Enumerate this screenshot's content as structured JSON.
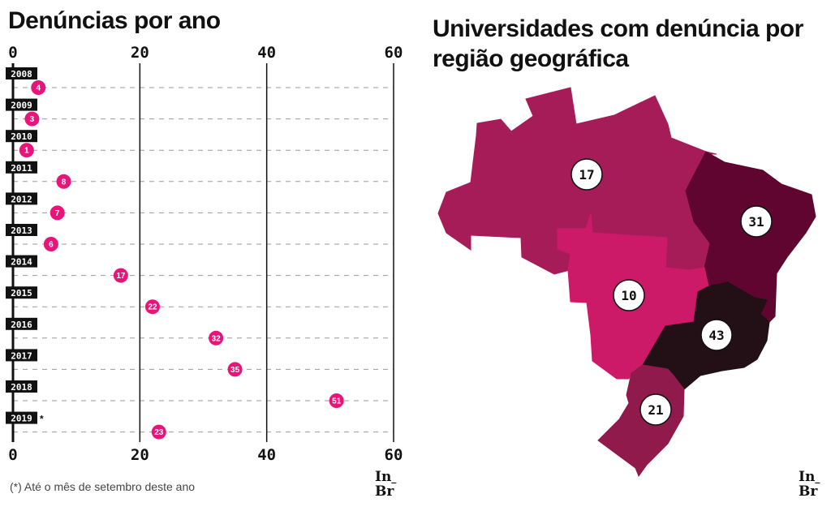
{
  "left_title": "Denúncias por ano",
  "right_title": "Universidades com denúncia por região geográfica",
  "footnote": "(*) Até o mês de setembro deste ano",
  "logo": "InBr",
  "chart_data": [
    {
      "type": "scatter",
      "title": "Denúncias por ano",
      "categories": [
        "2008",
        "2009",
        "2010",
        "2011",
        "2012",
        "2013",
        "2014",
        "2015",
        "2016",
        "2017",
        "2018",
        "2019"
      ],
      "category_marks": {
        "2019": "*"
      },
      "values": [
        4,
        3,
        1,
        8,
        7,
        6,
        17,
        22,
        32,
        35,
        51,
        23
      ],
      "xlim": [
        0,
        60
      ],
      "xticks": [
        "0",
        "20",
        "40",
        "60"
      ],
      "grid": true,
      "dot_color": "#e8147a"
    },
    {
      "type": "map",
      "title": "Universidades com denúncia por região geográfica",
      "regions": [
        {
          "id": "north",
          "value": 17,
          "color": "#a61c58"
        },
        {
          "id": "northeast",
          "value": 31,
          "color": "#5f0530"
        },
        {
          "id": "center-west",
          "value": 10,
          "color": "#cc1a68"
        },
        {
          "id": "southeast",
          "value": 43,
          "color": "#230f16"
        },
        {
          "id": "south",
          "value": 21,
          "color": "#8f1a4b"
        }
      ]
    }
  ]
}
